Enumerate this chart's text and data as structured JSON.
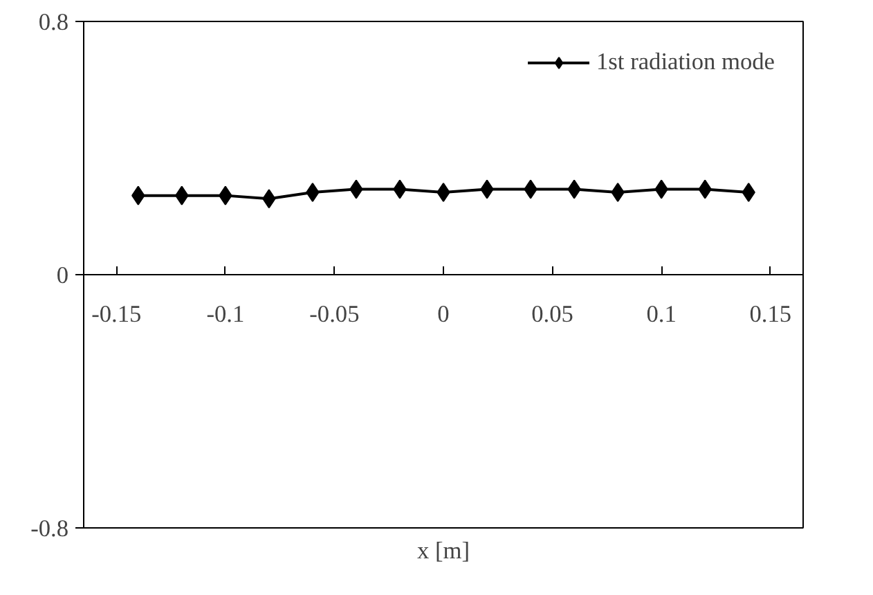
{
  "chart_data": {
    "type": "line",
    "xlabel": "x [m]",
    "x": [
      -0.14,
      -0.12,
      -0.1,
      -0.08,
      -0.06,
      -0.04,
      -0.02,
      0,
      0.02,
      0.04,
      0.06,
      0.08,
      0.1,
      0.12,
      0.14
    ],
    "series": [
      {
        "name": "1st radiation mode",
        "color": "#000000",
        "values": [
          0.25,
          0.25,
          0.25,
          0.24,
          0.26,
          0.27,
          0.27,
          0.26,
          0.27,
          0.27,
          0.27,
          0.26,
          0.27,
          0.27,
          0.26
        ]
      }
    ],
    "xlim": [
      -0.165,
      0.165
    ],
    "xticks": [
      -0.15,
      -0.1,
      -0.05,
      0,
      0.05,
      0.1,
      0.15
    ],
    "ylim": [
      -0.8,
      0.8
    ],
    "yticks": [
      -0.8,
      0,
      0.8
    ],
    "grid": false,
    "legend": "top right",
    "marker": "diamond",
    "line_style": "solid"
  }
}
